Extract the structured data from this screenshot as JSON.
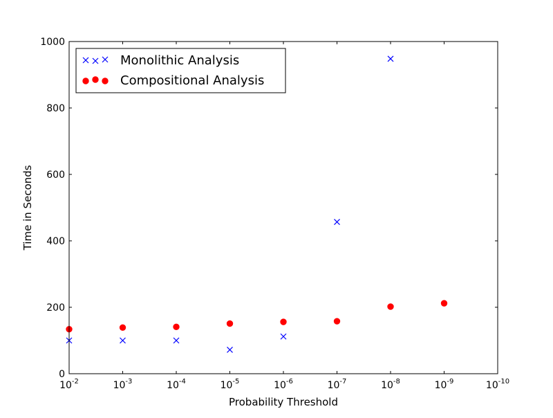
{
  "chart_data": {
    "type": "scatter",
    "title": "",
    "xlabel": "Probability Threshold",
    "ylabel": "Time in Seconds",
    "x_scale": "log",
    "x_reversed": true,
    "xlim": [
      0.01,
      1e-10
    ],
    "ylim": [
      0,
      1000
    ],
    "grid": false,
    "legend_position": "upper-left",
    "x_ticks": [
      {
        "value": 0.01,
        "label": "10-2",
        "base": "10",
        "exp": "-2"
      },
      {
        "value": 0.001,
        "label": "10-3",
        "base": "10",
        "exp": "-3"
      },
      {
        "value": 0.0001,
        "label": "10-4",
        "base": "10",
        "exp": "-4"
      },
      {
        "value": 1e-05,
        "label": "10-5",
        "base": "10",
        "exp": "-5"
      },
      {
        "value": 1e-06,
        "label": "10-6",
        "base": "10",
        "exp": "-6"
      },
      {
        "value": 1e-07,
        "label": "10-7",
        "base": "10",
        "exp": "-7"
      },
      {
        "value": 1e-08,
        "label": "10-8",
        "base": "10",
        "exp": "-8"
      },
      {
        "value": 1e-09,
        "label": "10-9",
        "base": "10",
        "exp": "-9"
      },
      {
        "value": 1e-10,
        "label": "10-10",
        "base": "10",
        "exp": "-10"
      }
    ],
    "y_ticks": [
      {
        "value": 0,
        "label": "0"
      },
      {
        "value": 200,
        "label": "200"
      },
      {
        "value": 400,
        "label": "400"
      },
      {
        "value": 600,
        "label": "600"
      },
      {
        "value": 800,
        "label": "800"
      },
      {
        "value": 1000,
        "label": "1000"
      }
    ],
    "series": [
      {
        "name": "Monolithic Analysis",
        "marker": "x",
        "color": "#0000ff",
        "points": [
          {
            "x": 0.01,
            "y": 100
          },
          {
            "x": 0.001,
            "y": 100
          },
          {
            "x": 0.0001,
            "y": 100
          },
          {
            "x": 1e-05,
            "y": 72
          },
          {
            "x": 1e-06,
            "y": 112
          },
          {
            "x": 1e-07,
            "y": 457
          },
          {
            "x": 1e-08,
            "y": 948
          }
        ]
      },
      {
        "name": "Compositional Analysis",
        "marker": "circle",
        "color": "#ff0000",
        "points": [
          {
            "x": 0.01,
            "y": 134
          },
          {
            "x": 0.001,
            "y": 139
          },
          {
            "x": 0.0001,
            "y": 141
          },
          {
            "x": 1e-05,
            "y": 151
          },
          {
            "x": 1e-06,
            "y": 156
          },
          {
            "x": 1e-07,
            "y": 158
          },
          {
            "x": 1e-08,
            "y": 202
          },
          {
            "x": 1e-09,
            "y": 212
          }
        ]
      }
    ]
  }
}
